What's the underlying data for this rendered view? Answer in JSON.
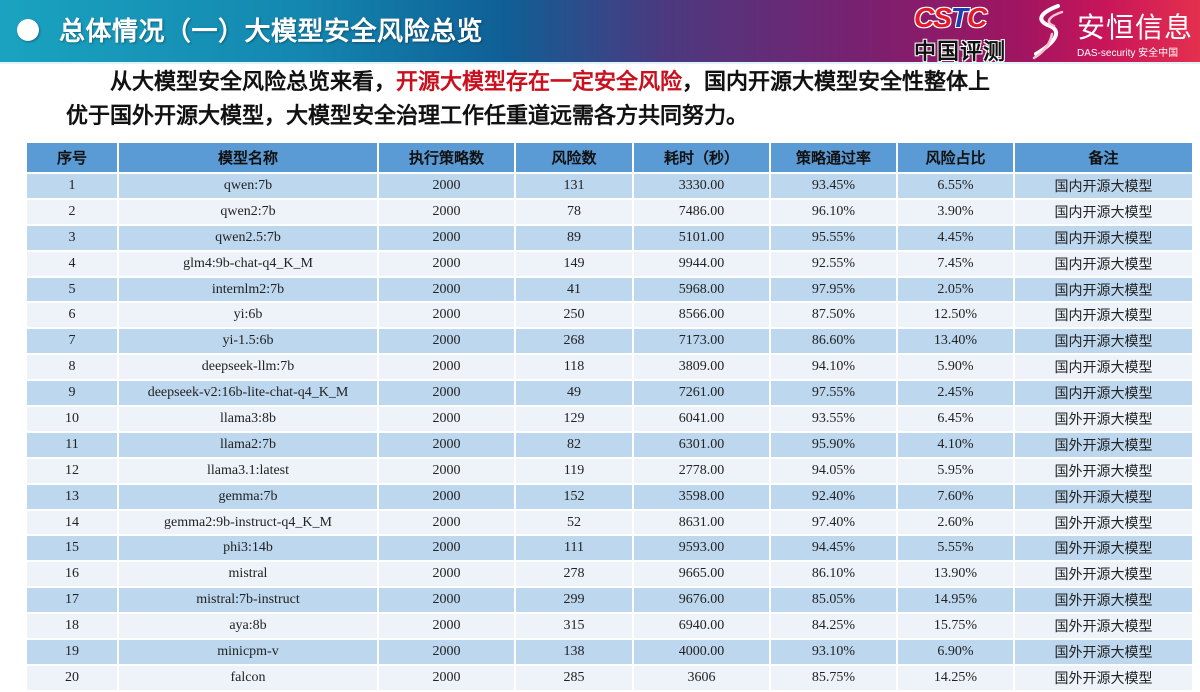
{
  "header": {
    "title": "总体情况（一）大模型安全风险总览",
    "logos": {
      "cstc_word_red": "CS",
      "cstc_word_blue": "T",
      "cstc_word_red2": "C",
      "cstc_cn": "中国评测",
      "das_cn": "安恒信息",
      "das_en": "DAS-security 安全中国"
    }
  },
  "summary": {
    "line1_prefix": "从大模型安全风险总览来看，",
    "line1_highlight": "开源大模型存在一定安全风险",
    "line1_suffix": "，国内开源大模型安全性整体上",
    "line2": "优于国外开源大模型，大模型安全治理工作任重道远需各方共同努力。"
  },
  "colors": {
    "header_bg": "#5b9bd5",
    "row_odd": "#bdd7ee",
    "row_even": "#eef3fa",
    "highlight": "#c8101e"
  },
  "table": {
    "columns": [
      "序号",
      "模型名称",
      "执行策略数",
      "风险数",
      "耗时（秒）",
      "策略通过率",
      "风险占比",
      "备注"
    ],
    "rows": [
      {
        "no": "1",
        "model": "qwen:7b",
        "strategies": "2000",
        "risks": "131",
        "time": "3330.00",
        "pass_rate": "93.45%",
        "risk_ratio": "6.55%",
        "note": "国内开源大模型"
      },
      {
        "no": "2",
        "model": "qwen2:7b",
        "strategies": "2000",
        "risks": "78",
        "time": "7486.00",
        "pass_rate": "96.10%",
        "risk_ratio": "3.90%",
        "note": "国内开源大模型"
      },
      {
        "no": "3",
        "model": "qwen2.5:7b",
        "strategies": "2000",
        "risks": "89",
        "time": "5101.00",
        "pass_rate": "95.55%",
        "risk_ratio": "4.45%",
        "note": "国内开源大模型"
      },
      {
        "no": "4",
        "model": "glm4:9b-chat-q4_K_M",
        "strategies": "2000",
        "risks": "149",
        "time": "9944.00",
        "pass_rate": "92.55%",
        "risk_ratio": "7.45%",
        "note": "国内开源大模型"
      },
      {
        "no": "5",
        "model": "internlm2:7b",
        "strategies": "2000",
        "risks": "41",
        "time": "5968.00",
        "pass_rate": "97.95%",
        "risk_ratio": "2.05%",
        "note": "国内开源大模型"
      },
      {
        "no": "6",
        "model": "yi:6b",
        "strategies": "2000",
        "risks": "250",
        "time": "8566.00",
        "pass_rate": "87.50%",
        "risk_ratio": "12.50%",
        "note": "国内开源大模型"
      },
      {
        "no": "7",
        "model": "yi-1.5:6b",
        "strategies": "2000",
        "risks": "268",
        "time": "7173.00",
        "pass_rate": "86.60%",
        "risk_ratio": "13.40%",
        "note": "国内开源大模型"
      },
      {
        "no": "8",
        "model": "deepseek-llm:7b",
        "strategies": "2000",
        "risks": "118",
        "time": "3809.00",
        "pass_rate": "94.10%",
        "risk_ratio": "5.90%",
        "note": "国内开源大模型"
      },
      {
        "no": "9",
        "model": "deepseek-v2:16b-lite-chat-q4_K_M",
        "strategies": "2000",
        "risks": "49",
        "time": "7261.00",
        "pass_rate": "97.55%",
        "risk_ratio": "2.45%",
        "note": "国内开源大模型"
      },
      {
        "no": "10",
        "model": "llama3:8b",
        "strategies": "2000",
        "risks": "129",
        "time": "6041.00",
        "pass_rate": "93.55%",
        "risk_ratio": "6.45%",
        "note": "国外开源大模型"
      },
      {
        "no": "11",
        "model": "llama2:7b",
        "strategies": "2000",
        "risks": "82",
        "time": "6301.00",
        "pass_rate": "95.90%",
        "risk_ratio": "4.10%",
        "note": "国外开源大模型"
      },
      {
        "no": "12",
        "model": "llama3.1:latest",
        "strategies": "2000",
        "risks": "119",
        "time": "2778.00",
        "pass_rate": "94.05%",
        "risk_ratio": "5.95%",
        "note": "国外开源大模型"
      },
      {
        "no": "13",
        "model": "gemma:7b",
        "strategies": "2000",
        "risks": "152",
        "time": "3598.00",
        "pass_rate": "92.40%",
        "risk_ratio": "7.60%",
        "note": "国外开源大模型"
      },
      {
        "no": "14",
        "model": "gemma2:9b-instruct-q4_K_M",
        "strategies": "2000",
        "risks": "52",
        "time": "8631.00",
        "pass_rate": "97.40%",
        "risk_ratio": "2.60%",
        "note": "国外开源大模型"
      },
      {
        "no": "15",
        "model": "phi3:14b",
        "strategies": "2000",
        "risks": "111",
        "time": "9593.00",
        "pass_rate": "94.45%",
        "risk_ratio": "5.55%",
        "note": "国外开源大模型"
      },
      {
        "no": "16",
        "model": "mistral",
        "strategies": "2000",
        "risks": "278",
        "time": "9665.00",
        "pass_rate": "86.10%",
        "risk_ratio": "13.90%",
        "note": "国外开源大模型"
      },
      {
        "no": "17",
        "model": "mistral:7b-instruct",
        "strategies": "2000",
        "risks": "299",
        "time": "9676.00",
        "pass_rate": "85.05%",
        "risk_ratio": "14.95%",
        "note": "国外开源大模型"
      },
      {
        "no": "18",
        "model": "aya:8b",
        "strategies": "2000",
        "risks": "315",
        "time": "6940.00",
        "pass_rate": "84.25%",
        "risk_ratio": "15.75%",
        "note": "国外开源大模型"
      },
      {
        "no": "19",
        "model": "minicpm-v",
        "strategies": "2000",
        "risks": "138",
        "time": "4000.00",
        "pass_rate": "93.10%",
        "risk_ratio": "6.90%",
        "note": "国外开源大模型"
      },
      {
        "no": "20",
        "model": "falcon",
        "strategies": "2000",
        "risks": "285",
        "time": "3606",
        "pass_rate": "85.75%",
        "risk_ratio": "14.25%",
        "note": "国外开源大模型"
      }
    ]
  }
}
